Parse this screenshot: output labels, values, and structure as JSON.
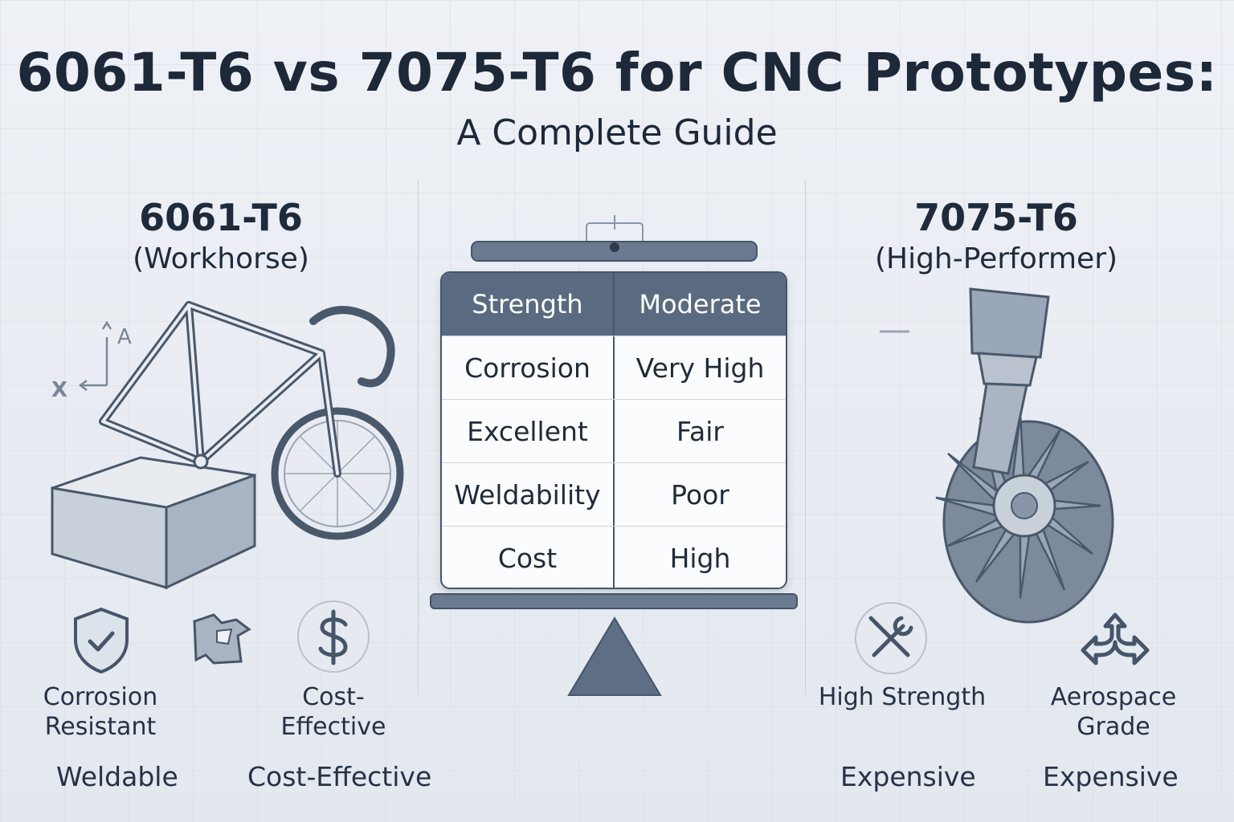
{
  "title": "6061-T6 vs 7075-T6 for CNC Prototypes:",
  "subtitle": "A Complete Guide",
  "left": {
    "name": "6061-T6",
    "tag": "(Workhorse)",
    "axis_labels": {
      "a": "A",
      "x": "X"
    },
    "features": [
      {
        "icon": "shield-check-icon",
        "label": "Corrosion\nResistant"
      },
      {
        "icon": "welding-part-icon",
        "label": ""
      },
      {
        "icon": "dollar-icon",
        "label": "Cost-\nEffective"
      }
    ],
    "bottom_labels": [
      "Weldable",
      "Cost-Effective"
    ]
  },
  "right": {
    "name": "7075-T6",
    "tag": "(High-Performer)",
    "features": [
      {
        "icon": "wrench-screwdriver-icon",
        "label": "High Strength"
      },
      {
        "icon": "arrows-split-icon",
        "label": "Aerospace\nGrade"
      }
    ],
    "bottom_labels": [
      "Expensive",
      "Expensive"
    ]
  },
  "table": {
    "header": [
      "Strength",
      "Moderate"
    ],
    "rows": [
      [
        "Corrosion",
        "Very High"
      ],
      [
        "Excellent",
        "Fair"
      ],
      [
        "Weldability",
        "Poor"
      ],
      [
        "Cost",
        "High"
      ]
    ]
  },
  "colors": {
    "accent": "#5a6a80",
    "line": "#46556a",
    "text": "#1f2a3a"
  }
}
